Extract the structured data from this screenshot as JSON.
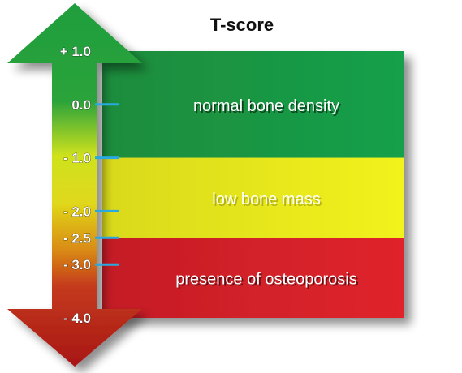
{
  "title": "T-score",
  "scale": {
    "top": 1.0,
    "bottom": -4.0,
    "ticks": [
      {
        "value": 1.0,
        "label": "+ 1.0",
        "marker": false
      },
      {
        "value": 0.0,
        "label": "0.0",
        "marker": true
      },
      {
        "value": -1.0,
        "label": "- 1.0",
        "marker": true
      },
      {
        "value": -2.0,
        "label": "- 2.0",
        "marker": true
      },
      {
        "value": -2.5,
        "label": "- 2.5",
        "marker": true
      },
      {
        "value": -3.0,
        "label": "- 3.0",
        "marker": true
      },
      {
        "value": -4.0,
        "label": "- 4.0",
        "marker": false
      }
    ]
  },
  "bands": [
    {
      "label": "normal bone density",
      "from": 1.0,
      "to": -1.0,
      "color": "#1a8a3c"
    },
    {
      "label": "low bone mass",
      "from": -1.0,
      "to": -2.5,
      "color": "#e6e619"
    },
    {
      "label": "presence of osteoporosis",
      "from": -2.5,
      "to": -4.0,
      "color": "#d6222b"
    }
  ],
  "colors": {
    "arrow_top": "#1a9a3c",
    "arrow_bottom": "#c01e1e",
    "tick_marker": "#29a9e0"
  }
}
